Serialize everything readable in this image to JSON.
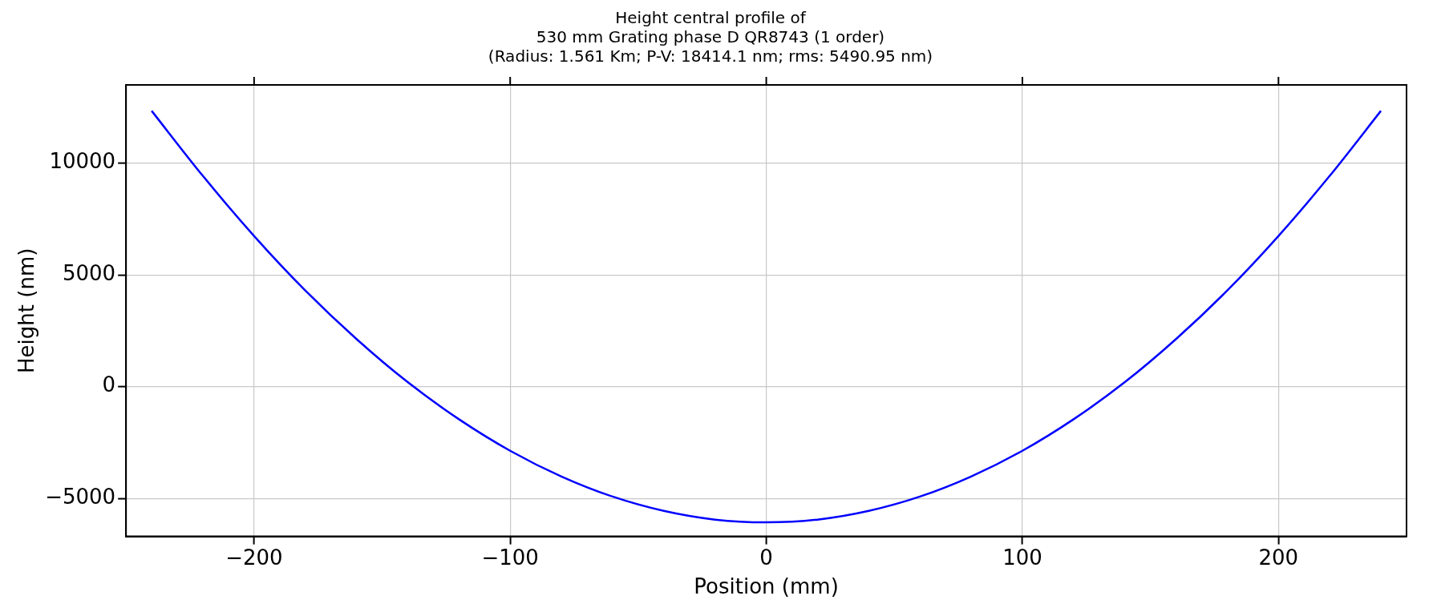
{
  "chart_data": {
    "type": "line",
    "title": "Height central profile of\n530 mm Grating phase D QR8743 (1 order)\n(Radius: 1.561 Km; P-V: 18414.1 nm; rms: 5490.95 nm)",
    "xlabel": "Position (mm)",
    "ylabel": "Height (nm)",
    "x": [
      -240,
      -220,
      -200,
      -180,
      -160,
      -140,
      -120,
      -100,
      -80,
      -60,
      -40,
      -20,
      0,
      20,
      40,
      60,
      80,
      100,
      120,
      140,
      160,
      180,
      200,
      220,
      240
    ],
    "series": [
      {
        "color": "#0000ff",
        "values": [
          12340,
          9430,
          6740,
          4300,
          2130,
          200,
          -1460,
          -2870,
          -4020,
          -4920,
          -5560,
          -5950,
          -6070,
          -5950,
          -5560,
          -4920,
          -4020,
          -2870,
          -1460,
          200,
          2130,
          4300,
          6740,
          9430,
          12340
        ]
      }
    ],
    "xlim": [
      -250,
      250
    ],
    "xticks": [
      -200,
      -100,
      0,
      100,
      200
    ],
    "ylim": [
      -6700,
      13500
    ],
    "yticks": [
      -5000,
      0,
      5000,
      10000
    ],
    "grid": true,
    "legend": false,
    "marker": "none",
    "line_style": "solid"
  }
}
